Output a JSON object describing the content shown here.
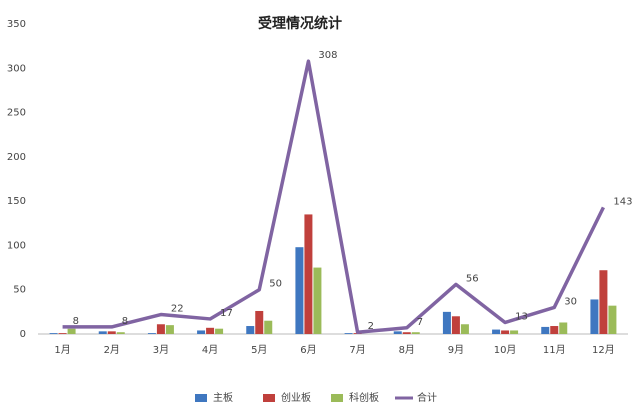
{
  "chart_data": {
    "type": "bar",
    "title": "受理情况统计",
    "categories": [
      "1月",
      "2月",
      "3月",
      "4月",
      "5月",
      "6月",
      "7月",
      "8月",
      "9月",
      "10月",
      "11月",
      "12月"
    ],
    "series": [
      {
        "name": "主板",
        "color": "#3f77c0",
        "type": "bar",
        "values": [
          1,
          3,
          1,
          4,
          9,
          98,
          1,
          3,
          25,
          5,
          8,
          39
        ]
      },
      {
        "name": "创业板",
        "color": "#c0403c",
        "type": "bar",
        "values": [
          1,
          3,
          11,
          7,
          26,
          135,
          1,
          2,
          20,
          4,
          9,
          72
        ]
      },
      {
        "name": "科创板",
        "color": "#9bbb59",
        "type": "bar",
        "values": [
          6,
          2,
          10,
          6,
          15,
          75,
          0,
          2,
          11,
          4,
          13,
          32
        ]
      },
      {
        "name": "合计",
        "color": "#8064a2",
        "type": "line",
        "values": [
          8,
          8,
          22,
          17,
          50,
          308,
          2,
          7,
          56,
          13,
          30,
          143
        ]
      }
    ],
    "ylim": [
      0,
      350
    ],
    "yticks": [
      0,
      50,
      100,
      150,
      200,
      250,
      300,
      350
    ],
    "grid": false,
    "legend": "bottom"
  }
}
